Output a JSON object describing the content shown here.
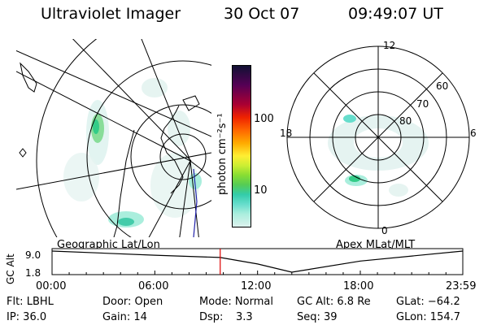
{
  "header": {
    "title": "Ultraviolet Imager",
    "date": "30 Oct 07",
    "time": "09:49:07 UT"
  },
  "colorbar": {
    "label": "photon cm⁻²s⁻¹",
    "tick_labels": [
      "100",
      "10"
    ],
    "colors": [
      "#111133",
      "#550055",
      "#aa0033",
      "#ee2200",
      "#ff6600",
      "#ffaa00",
      "#ffee33",
      "#ccee33",
      "#88dd33",
      "#55cc55",
      "#33ccaa",
      "#66ddcc",
      "#aaeedd",
      "#ddf2ee"
    ]
  },
  "left_panel": {
    "caption": "Geographic Lat/Lon"
  },
  "right_panel": {
    "caption": "Apex MLat/MLT",
    "mlt_labels": [
      "12",
      "18",
      "6",
      "0"
    ],
    "mlat_labels": [
      "60",
      "70",
      "80"
    ]
  },
  "timeline": {
    "ylabel": "GC Alt",
    "ytick_labels": [
      "9.0",
      "1.8"
    ],
    "xtick_labels": [
      "00:00",
      "06:00",
      "12:00",
      "18:00",
      "23:59"
    ],
    "marker_color": "#dd0000"
  },
  "info": {
    "filter": "Flt: LBHL",
    "ip": "IP: 36.0",
    "door": "Door: Open",
    "gain": "Gain: 14",
    "mode": "Mode: Normal",
    "dsp_label": "Dsp:",
    "dsp_value": "3.3",
    "gc_alt": "GC Alt: 6.8 Re",
    "seq": "Seq: 39",
    "glat": "GLat: −64.2",
    "glon": "GLon: 154.7"
  },
  "chart_data": {
    "type": "line",
    "title": "Ultraviolet Imager",
    "xlabel": "",
    "ylabel": "GC Alt",
    "x_categories": [
      "00:00",
      "06:00",
      "12:00",
      "18:00",
      "23:59"
    ],
    "x": [
      "00:00",
      "06:00",
      "09:49",
      "12:00",
      "14:00",
      "18:00",
      "23:59"
    ],
    "series": [
      {
        "values": [
          9.0,
          7.6,
          6.8,
          4.6,
          1.8,
          5.6,
          9.0
        ]
      }
    ],
    "ylim": [
      1.8,
      9.0
    ],
    "current_time": "09:49:07",
    "grid": false
  }
}
